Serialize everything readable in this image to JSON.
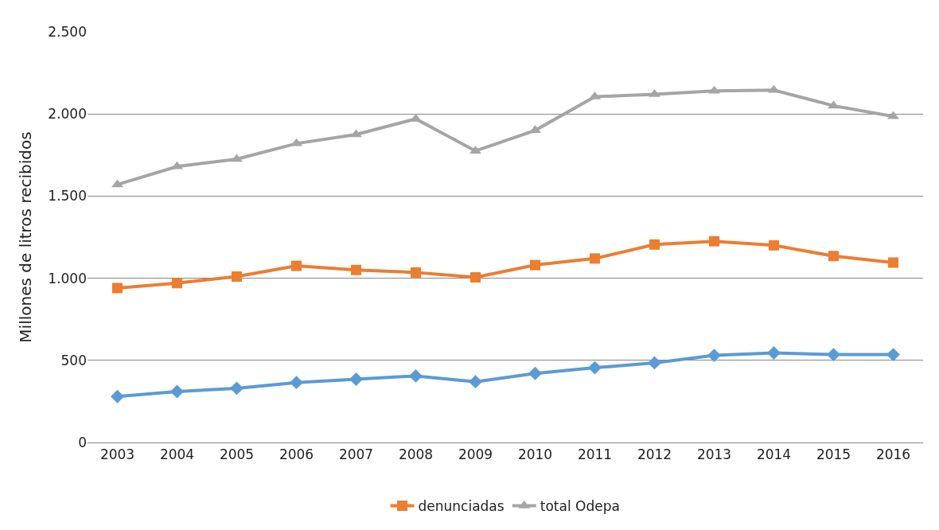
{
  "chart_data": {
    "type": "line",
    "ylabel": "Millones de litros recibidos",
    "categories": [
      "2003",
      "2004",
      "2005",
      "2006",
      "2007",
      "2008",
      "2009",
      "2010",
      "2011",
      "2012",
      "2013",
      "2014",
      "2015",
      "2016"
    ],
    "series": [
      {
        "color": "#5b9bd5",
        "marker": "diamond",
        "values": [
          280,
          310,
          330,
          365,
          385,
          405,
          370,
          420,
          455,
          485,
          530,
          545,
          535,
          535
        ]
      },
      {
        "name": "denunciadas",
        "color": "#ed7d31",
        "marker": "square",
        "values": [
          940,
          970,
          1010,
          1075,
          1050,
          1035,
          1005,
          1080,
          1120,
          1205,
          1225,
          1200,
          1135,
          1095
        ]
      },
      {
        "name": "total Odepa",
        "color": "#a5a5a5",
        "marker": "triangle",
        "values": [
          1570,
          1680,
          1725,
          1820,
          1875,
          1970,
          1775,
          1900,
          2105,
          2120,
          2140,
          2145,
          2050,
          1985
        ]
      }
    ],
    "ylim": [
      0,
      2500
    ],
    "yticks": [
      {
        "value": 0,
        "label": "0"
      },
      {
        "value": 500,
        "label": "500"
      },
      {
        "value": 1000,
        "label": "1.000"
      },
      {
        "value": 1500,
        "label": "1.500"
      },
      {
        "value": 2000,
        "label": "2.000"
      },
      {
        "value": 2500,
        "label": "2.500"
      }
    ],
    "grid": "y",
    "legend": "bottom",
    "line_style": "solid"
  }
}
